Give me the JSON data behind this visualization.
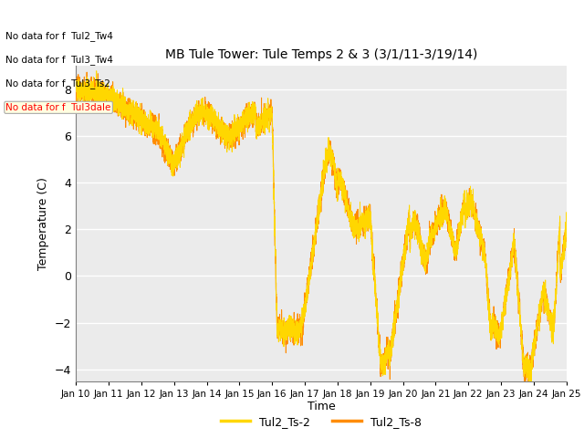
{
  "title": "MB Tule Tower: Tule Temps 2 & 3 (3/1/11-3/19/14)",
  "xlabel": "Time",
  "ylabel": "Temperature (C)",
  "ylim": [
    -4.5,
    9.0
  ],
  "yticks": [
    -4,
    -2,
    0,
    2,
    4,
    6,
    8
  ],
  "color_ts2": "#FFD700",
  "color_ts8": "#FF8C00",
  "legend_labels": [
    "Tul2_Ts-2",
    "Tul2_Ts-8"
  ],
  "annotations": [
    "No data for f  Tul2_Tw4",
    "No data for f  Tul3_Tw4",
    "No data for f  Tul3_Ts2",
    "No data for f  Tul3dale"
  ],
  "plot_bg": "#ebebeb",
  "grid_color": "white",
  "xtick_labels": [
    "Jan 10",
    "Jan 11",
    "Jan 12",
    "Jan 13",
    "Jan 14",
    "Jan 15",
    "Jan 16",
    "Jan 17",
    "Jan 18",
    "Jan 19",
    "Jan 20",
    "Jan 21",
    "Jan 22",
    "Jan 23",
    "Jan 24",
    "Jan 25"
  ],
  "n_points": 5000,
  "seed": 42
}
